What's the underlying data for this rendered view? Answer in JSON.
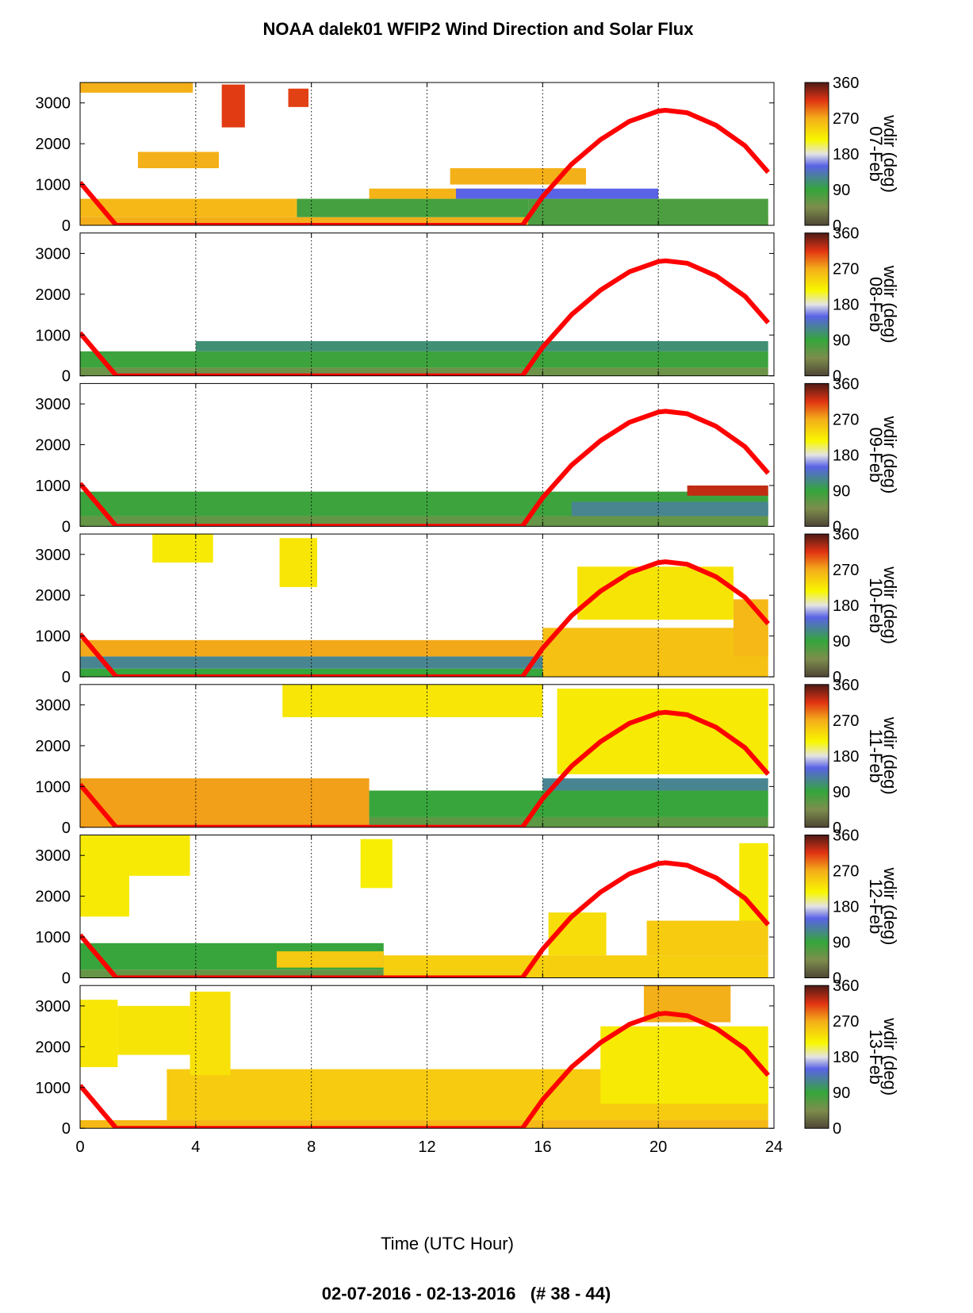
{
  "title": "NOAA dalek01 WFIP2 Wind Direction and Solar Flux",
  "footer": "02-07-2016 - 02-13-2016   (# 38 - 44)",
  "chart_data": {
    "type": "heatmap",
    "title": "NOAA dalek01 WFIP2 Wind Direction and Solar Flux",
    "xlabel": "Time (UTC Hour)",
    "xlim": [
      0,
      24
    ],
    "xticks": [
      0,
      4,
      8,
      12,
      16,
      20,
      24
    ],
    "ylim": [
      0,
      3500
    ],
    "yticks": [
      0,
      1000,
      2000,
      3000
    ],
    "vertical_gridlines": [
      4,
      8,
      12,
      16,
      20
    ],
    "grid": "dotted vertical lines",
    "colorbar": {
      "label": "wdir (deg)",
      "ticks": [
        0,
        90,
        180,
        270,
        360
      ],
      "stops": [
        {
          "value": 0,
          "color": "#4e4535"
        },
        {
          "value": 45,
          "color": "#7d8d4c"
        },
        {
          "value": 90,
          "color": "#35a63b"
        },
        {
          "value": 150,
          "color": "#5a63e6"
        },
        {
          "value": 180,
          "color": "#e4e4e4"
        },
        {
          "value": 215,
          "color": "#f8f800"
        },
        {
          "value": 270,
          "color": "#f4ad1a"
        },
        {
          "value": 315,
          "color": "#e03312"
        },
        {
          "value": 360,
          "color": "#4e1a16"
        }
      ]
    },
    "solar_flux_color": "#ff0000",
    "solar_flux_curve": {
      "x": [
        0,
        1.25,
        15.3,
        16,
        17,
        18,
        19,
        20,
        20.25,
        21,
        22,
        23,
        23.8
      ],
      "y": [
        1050,
        0,
        0,
        700,
        1500,
        2100,
        2550,
        2800,
        2820,
        2760,
        2450,
        1950,
        1300
      ]
    },
    "panels": [
      {
        "day_label": "07-Feb",
        "layers": [
          {
            "x0": 0,
            "x1": 23.8,
            "y0": 0,
            "y1": 200,
            "value": 270
          },
          {
            "x0": 0,
            "x1": 7.5,
            "y0": 200,
            "y1": 650,
            "value": 262
          },
          {
            "x0": 7.5,
            "x1": 15.5,
            "y0": 200,
            "y1": 650,
            "value": 80
          },
          {
            "x0": 15.5,
            "x1": 23.8,
            "y0": 0,
            "y1": 650,
            "value": 75
          },
          {
            "x0": 10,
            "x1": 15.5,
            "y0": 650,
            "y1": 900,
            "value": 265
          },
          {
            "x0": 13,
            "x1": 20,
            "y0": 650,
            "y1": 900,
            "value": 150
          },
          {
            "x0": 0,
            "x1": 3.9,
            "y0": 3250,
            "y1": 3500,
            "value": 268
          },
          {
            "x0": 4.9,
            "x1": 5.7,
            "y0": 2400,
            "y1": 3450,
            "value": 312
          },
          {
            "x0": 7.2,
            "x1": 7.9,
            "y0": 2900,
            "y1": 3350,
            "value": 310
          },
          {
            "x0": 2,
            "x1": 4.8,
            "y0": 1400,
            "y1": 1800,
            "value": 268
          },
          {
            "x0": 12.8,
            "x1": 17.5,
            "y0": 1000,
            "y1": 1400,
            "value": 268
          }
        ]
      },
      {
        "day_label": "08-Feb",
        "layers": [
          {
            "x0": 0,
            "x1": 23.8,
            "y0": 0,
            "y1": 200,
            "value": 55
          },
          {
            "x0": 0,
            "x1": 23.8,
            "y0": 200,
            "y1": 600,
            "value": 85
          },
          {
            "x0": 4,
            "x1": 23.8,
            "y0": 600,
            "y1": 850,
            "value": 110
          }
        ]
      },
      {
        "day_label": "09-Feb",
        "layers": [
          {
            "x0": 0,
            "x1": 23.8,
            "y0": 0,
            "y1": 250,
            "value": 60
          },
          {
            "x0": 0,
            "x1": 23.8,
            "y0": 250,
            "y1": 850,
            "value": 85
          },
          {
            "x0": 17,
            "x1": 23.8,
            "y0": 250,
            "y1": 600,
            "value": 120
          },
          {
            "x0": 21,
            "x1": 23.8,
            "y0": 750,
            "y1": 1000,
            "value": 325
          }
        ]
      },
      {
        "day_label": "10-Feb",
        "layers": [
          {
            "x0": 0,
            "x1": 16,
            "y0": 0,
            "y1": 200,
            "value": 90
          },
          {
            "x0": 0,
            "x1": 16,
            "y0": 200,
            "y1": 500,
            "value": 120
          },
          {
            "x0": 0,
            "x1": 16,
            "y0": 500,
            "y1": 900,
            "value": 272
          },
          {
            "x0": 16,
            "x1": 23.8,
            "y0": 0,
            "y1": 1200,
            "value": 255
          },
          {
            "x0": 2.5,
            "x1": 4.6,
            "y0": 2800,
            "y1": 3500,
            "value": 225
          },
          {
            "x0": 6.9,
            "x1": 8.2,
            "y0": 2200,
            "y1": 3400,
            "value": 228
          },
          {
            "x0": 17.2,
            "x1": 22.6,
            "y0": 1400,
            "y1": 2700,
            "value": 230
          },
          {
            "x0": 22.6,
            "x1": 23.8,
            "y0": 500,
            "y1": 1900,
            "value": 262
          }
        ]
      },
      {
        "day_label": "11-Feb",
        "layers": [
          {
            "x0": 0,
            "x1": 10,
            "y0": 0,
            "y1": 1200,
            "value": 275
          },
          {
            "x0": 10,
            "x1": 23.8,
            "y0": 0,
            "y1": 250,
            "value": 65
          },
          {
            "x0": 10,
            "x1": 23.8,
            "y0": 250,
            "y1": 900,
            "value": 88
          },
          {
            "x0": 16,
            "x1": 23.8,
            "y0": 900,
            "y1": 1200,
            "value": 120
          },
          {
            "x0": 7,
            "x1": 16,
            "y0": 2700,
            "y1": 3500,
            "value": 228
          },
          {
            "x0": 16.5,
            "x1": 23.8,
            "y0": 1300,
            "y1": 3400,
            "value": 225
          }
        ]
      },
      {
        "day_label": "12-Feb",
        "layers": [
          {
            "x0": 0,
            "x1": 10.5,
            "y0": 0,
            "y1": 200,
            "value": 60
          },
          {
            "x0": 0,
            "x1": 10.5,
            "y0": 200,
            "y1": 850,
            "value": 88
          },
          {
            "x0": 6.8,
            "x1": 10.5,
            "y0": 250,
            "y1": 650,
            "value": 250
          },
          {
            "x0": 10.5,
            "x1": 23.8,
            "y0": 0,
            "y1": 550,
            "value": 245
          },
          {
            "x0": 0,
            "x1": 1.7,
            "y0": 1500,
            "y1": 3500,
            "value": 225
          },
          {
            "x0": 1.7,
            "x1": 3.8,
            "y0": 2500,
            "y1": 3500,
            "value": 225
          },
          {
            "x0": 9.7,
            "x1": 10.8,
            "y0": 2200,
            "y1": 3400,
            "value": 222
          },
          {
            "x0": 16.2,
            "x1": 18.2,
            "y0": 550,
            "y1": 1600,
            "value": 235
          },
          {
            "x0": 19.6,
            "x1": 23.8,
            "y0": 550,
            "y1": 1400,
            "value": 248
          },
          {
            "x0": 22.8,
            "x1": 23.8,
            "y0": 1400,
            "y1": 3300,
            "value": 225
          }
        ]
      },
      {
        "day_label": "13-Feb",
        "layers": [
          {
            "x0": 0,
            "x1": 23.8,
            "y0": 0,
            "y1": 200,
            "value": 262
          },
          {
            "x0": 3,
            "x1": 23.8,
            "y0": 200,
            "y1": 1450,
            "value": 248
          },
          {
            "x0": 0,
            "x1": 1.3,
            "y0": 1500,
            "y1": 3150,
            "value": 228
          },
          {
            "x0": 1.3,
            "x1": 3.8,
            "y0": 1800,
            "y1": 3000,
            "value": 230
          },
          {
            "x0": 3.8,
            "x1": 5.2,
            "y0": 1300,
            "y1": 3350,
            "value": 232
          },
          {
            "x0": 18,
            "x1": 23.8,
            "y0": 600,
            "y1": 2500,
            "value": 225
          },
          {
            "x0": 19.5,
            "x1": 22.5,
            "y0": 2600,
            "y1": 3500,
            "value": 268
          }
        ]
      }
    ]
  }
}
